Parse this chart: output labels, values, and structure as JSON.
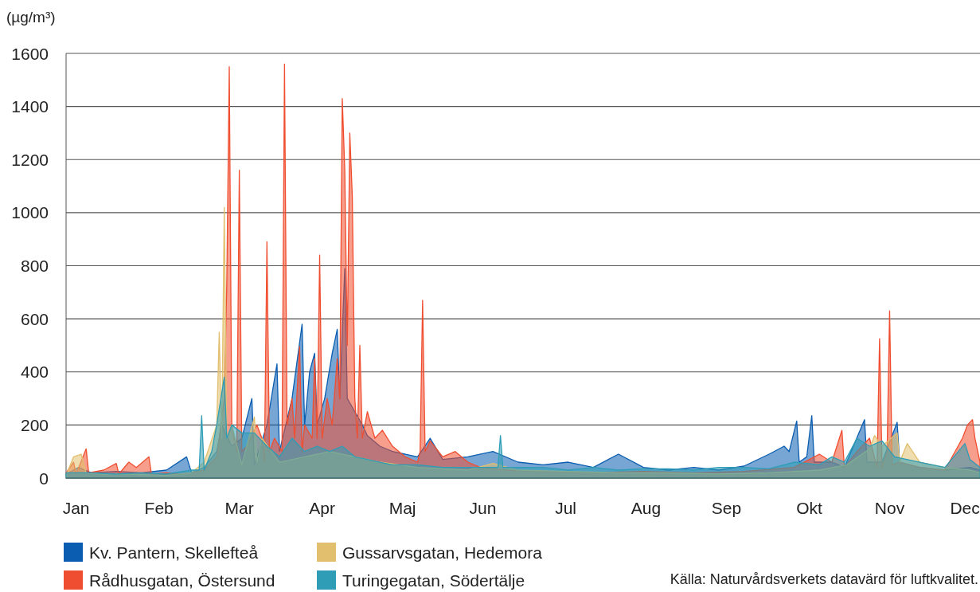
{
  "chart_data": {
    "type": "area",
    "ylabel": "(µg/m³)",
    "xlim": [
      "--01-01",
      "--12-31"
    ],
    "ylim": [
      0,
      1600
    ],
    "xticks": [
      {
        "value": "--01-05",
        "label": "Jan"
      },
      {
        "value": "--02-07",
        "label": "Feb"
      },
      {
        "value": "--03-11",
        "label": "Mar"
      },
      {
        "value": "--04-13",
        "label": "Apr"
      },
      {
        "value": "--05-15",
        "label": "Maj"
      },
      {
        "value": "--06-16",
        "label": "Jun"
      },
      {
        "value": "--07-19",
        "label": "Jul"
      },
      {
        "value": "--08-20",
        "label": "Aug"
      },
      {
        "value": "--09-21",
        "label": "Sep"
      },
      {
        "value": "--10-24",
        "label": "Okt"
      },
      {
        "value": "--11-25",
        "label": "Nov"
      },
      {
        "value": "--12-25",
        "label": "Dec"
      }
    ],
    "yticks": [
      0,
      200,
      400,
      600,
      800,
      1000,
      1200,
      1400,
      1600
    ],
    "grid": "y",
    "legend": "bottom",
    "annotations": [
      "Källa: Naturvårdsverkets datavärd för luftkvalitet."
    ],
    "series": [
      {
        "name": "Kv. Pantern, Skellefteå",
        "color": "#0a5db0",
        "x": [
          "--01-01",
          "--01-06",
          "--01-11",
          "--01-21",
          "--01-31",
          "--02-10",
          "--02-18",
          "--02-20",
          "--02-25",
          "--03-02",
          "--03-04",
          "--03-08",
          "--03-12",
          "--03-16",
          "--03-17",
          "--03-22",
          "--03-26",
          "--03-27",
          "--04-01",
          "--04-05",
          "--04-06",
          "--04-08",
          "--04-10",
          "--04-11",
          "--04-14",
          "--04-17",
          "--04-19",
          "--04-20",
          "--04-22",
          "--04-23",
          "--04-26",
          "--04-29",
          "--05-01",
          "--05-06",
          "--05-11",
          "--05-21",
          "--05-26",
          "--05-31",
          "--06-10",
          "--06-20",
          "--06-30",
          "--07-10",
          "--07-20",
          "--07-30",
          "--08-09",
          "--08-19",
          "--08-29",
          "--09-08",
          "--09-18",
          "--09-28",
          "--10-08",
          "--10-14",
          "--10-16",
          "--10-19",
          "--10-20",
          "--10-23",
          "--10-25",
          "--10-26",
          "--11-02",
          "--11-07",
          "--11-15",
          "--11-16",
          "--11-22",
          "--11-28",
          "--11-29",
          "--12-07",
          "--12-17",
          "--12-27",
          "--12-31"
        ],
        "values": [
          15,
          40,
          20,
          25,
          20,
          30,
          80,
          20,
          40,
          100,
          200,
          120,
          150,
          300,
          50,
          200,
          430,
          100,
          300,
          580,
          200,
          400,
          470,
          200,
          300,
          470,
          560,
          300,
          790,
          300,
          250,
          200,
          160,
          120,
          100,
          80,
          150,
          70,
          80,
          100,
          60,
          50,
          60,
          40,
          90,
          40,
          30,
          40,
          30,
          45,
          90,
          120,
          100,
          215,
          60,
          80,
          235,
          60,
          60,
          40,
          220,
          60,
          60,
          210,
          60,
          40,
          30,
          40,
          30
        ]
      },
      {
        "name": "Rådhusgatan, Östersund",
        "color": "#f04e30",
        "x": [
          "--01-01",
          "--01-04",
          "--01-05",
          "--01-09",
          "--01-10",
          "--01-16",
          "--01-21",
          "--01-22",
          "--01-26",
          "--01-29",
          "--02-03",
          "--02-04",
          "--02-10",
          "--02-15",
          "--02-20",
          "--02-25",
          "--03-02",
          "--03-03",
          "--03-05",
          "--03-06",
          "--03-07",
          "--03-08",
          "--03-09",
          "--03-10",
          "--03-11",
          "--03-12",
          "--03-14",
          "--03-18",
          "--03-20",
          "--03-21",
          "--03-22",
          "--03-23",
          "--03-25",
          "--03-28",
          "--03-29",
          "--03-30",
          "--04-01",
          "--04-02",
          "--04-04",
          "--04-05",
          "--04-06",
          "--04-09",
          "--04-10",
          "--04-11",
          "--04-12",
          "--04-13",
          "--04-15",
          "--04-17",
          "--04-19",
          "--04-20",
          "--04-21",
          "--04-22",
          "--04-23",
          "--04-24",
          "--04-25",
          "--04-26",
          "--04-27",
          "--04-28",
          "--04-29",
          "--05-01",
          "--05-04",
          "--05-07",
          "--05-11",
          "--05-16",
          "--05-21",
          "--05-22",
          "--05-23",
          "--05-24",
          "--05-26",
          "--05-31",
          "--06-05",
          "--06-10",
          "--06-15",
          "--06-25",
          "--07-10",
          "--07-30",
          "--08-19",
          "--09-08",
          "--09-28",
          "--10-18",
          "--10-28",
          "--11-02",
          "--11-06",
          "--11-07",
          "--11-12",
          "--11-17",
          "--11-20",
          "--11-21",
          "--11-22",
          "--11-24",
          "--11-25",
          "--11-26",
          "--11-29",
          "--12-07",
          "--12-17",
          "--12-24",
          "--12-26",
          "--12-28",
          "--12-29",
          "--12-31"
        ],
        "values": [
          20,
          60,
          15,
          110,
          20,
          30,
          55,
          15,
          60,
          40,
          80,
          15,
          20,
          15,
          20,
          30,
          80,
          150,
          300,
          730,
          1550,
          200,
          150,
          100,
          1160,
          100,
          120,
          200,
          150,
          60,
          890,
          100,
          150,
          100,
          1560,
          200,
          300,
          150,
          495,
          100,
          200,
          150,
          450,
          150,
          840,
          150,
          300,
          200,
          450,
          300,
          1430,
          1160,
          500,
          1300,
          1060,
          300,
          150,
          500,
          150,
          250,
          150,
          180,
          120,
          80,
          60,
          100,
          670,
          100,
          140,
          80,
          100,
          60,
          40,
          30,
          25,
          20,
          25,
          20,
          25,
          40,
          90,
          60,
          180,
          40,
          100,
          150,
          40,
          525,
          40,
          100,
          630,
          50,
          60,
          40,
          30,
          150,
          200,
          220,
          150,
          60
        ]
      },
      {
        "name": "Gussarvsgatan, Hedemora",
        "color": "#e2bf6e",
        "x": [
          "--01-01",
          "--01-04",
          "--01-07",
          "--01-09",
          "--01-16",
          "--01-26",
          "--02-10",
          "--02-20",
          "--02-25",
          "--03-02",
          "--03-03",
          "--03-04",
          "--03-05",
          "--03-06",
          "--03-08",
          "--03-12",
          "--03-17",
          "--03-18",
          "--03-20",
          "--03-27",
          "--04-06",
          "--04-16",
          "--04-26",
          "--05-06",
          "--05-21",
          "--06-10",
          "--06-20",
          "--06-30",
          "--07-20",
          "--08-09",
          "--08-29",
          "--09-18",
          "--10-08",
          "--10-28",
          "--11-08",
          "--11-17",
          "--11-19",
          "--11-22",
          "--11-28",
          "--11-29",
          "--12-02",
          "--12-07",
          "--12-17",
          "--12-27",
          "--12-31"
        ],
        "values": [
          10,
          80,
          90,
          20,
          15,
          15,
          10,
          20,
          60,
          200,
          550,
          150,
          1020,
          150,
          200,
          50,
          230,
          60,
          150,
          60,
          80,
          100,
          80,
          60,
          40,
          30,
          55,
          30,
          25,
          20,
          20,
          15,
          20,
          30,
          50,
          110,
          160,
          120,
          170,
          60,
          130,
          60,
          40,
          30,
          20
        ]
      },
      {
        "name": "Turingegatan, Södertälje",
        "color": "#2e9db5",
        "x": [
          "--01-01",
          "--01-11",
          "--01-21",
          "--01-31",
          "--02-10",
          "--02-20",
          "--02-23",
          "--02-24",
          "--02-25",
          "--02-28",
          "--03-02",
          "--03-05",
          "--03-06",
          "--03-08",
          "--03-12",
          "--03-17",
          "--03-22",
          "--03-27",
          "--04-01",
          "--04-06",
          "--04-11",
          "--04-16",
          "--04-21",
          "--04-26",
          "--05-01",
          "--05-06",
          "--05-11",
          "--05-21",
          "--05-31",
          "--06-10",
          "--06-22",
          "--06-23",
          "--06-24",
          "--06-30",
          "--07-10",
          "--07-20",
          "--07-30",
          "--08-09",
          "--08-19",
          "--08-29",
          "--09-08",
          "--09-18",
          "--09-28",
          "--10-08",
          "--10-18",
          "--10-28",
          "--11-02",
          "--11-07",
          "--11-12",
          "--11-17",
          "--11-22",
          "--11-27",
          "--12-07",
          "--12-17",
          "--12-25",
          "--12-27",
          "--12-31"
        ],
        "values": [
          20,
          20,
          15,
          20,
          15,
          30,
          30,
          235,
          30,
          100,
          200,
          380,
          150,
          200,
          170,
          170,
          120,
          80,
          150,
          100,
          120,
          100,
          120,
          80,
          70,
          60,
          50,
          50,
          40,
          40,
          40,
          160,
          40,
          40,
          40,
          30,
          40,
          30,
          35,
          35,
          30,
          40,
          40,
          35,
          60,
          50,
          80,
          60,
          150,
          120,
          140,
          80,
          60,
          40,
          130,
          70,
          40
        ]
      }
    ]
  }
}
